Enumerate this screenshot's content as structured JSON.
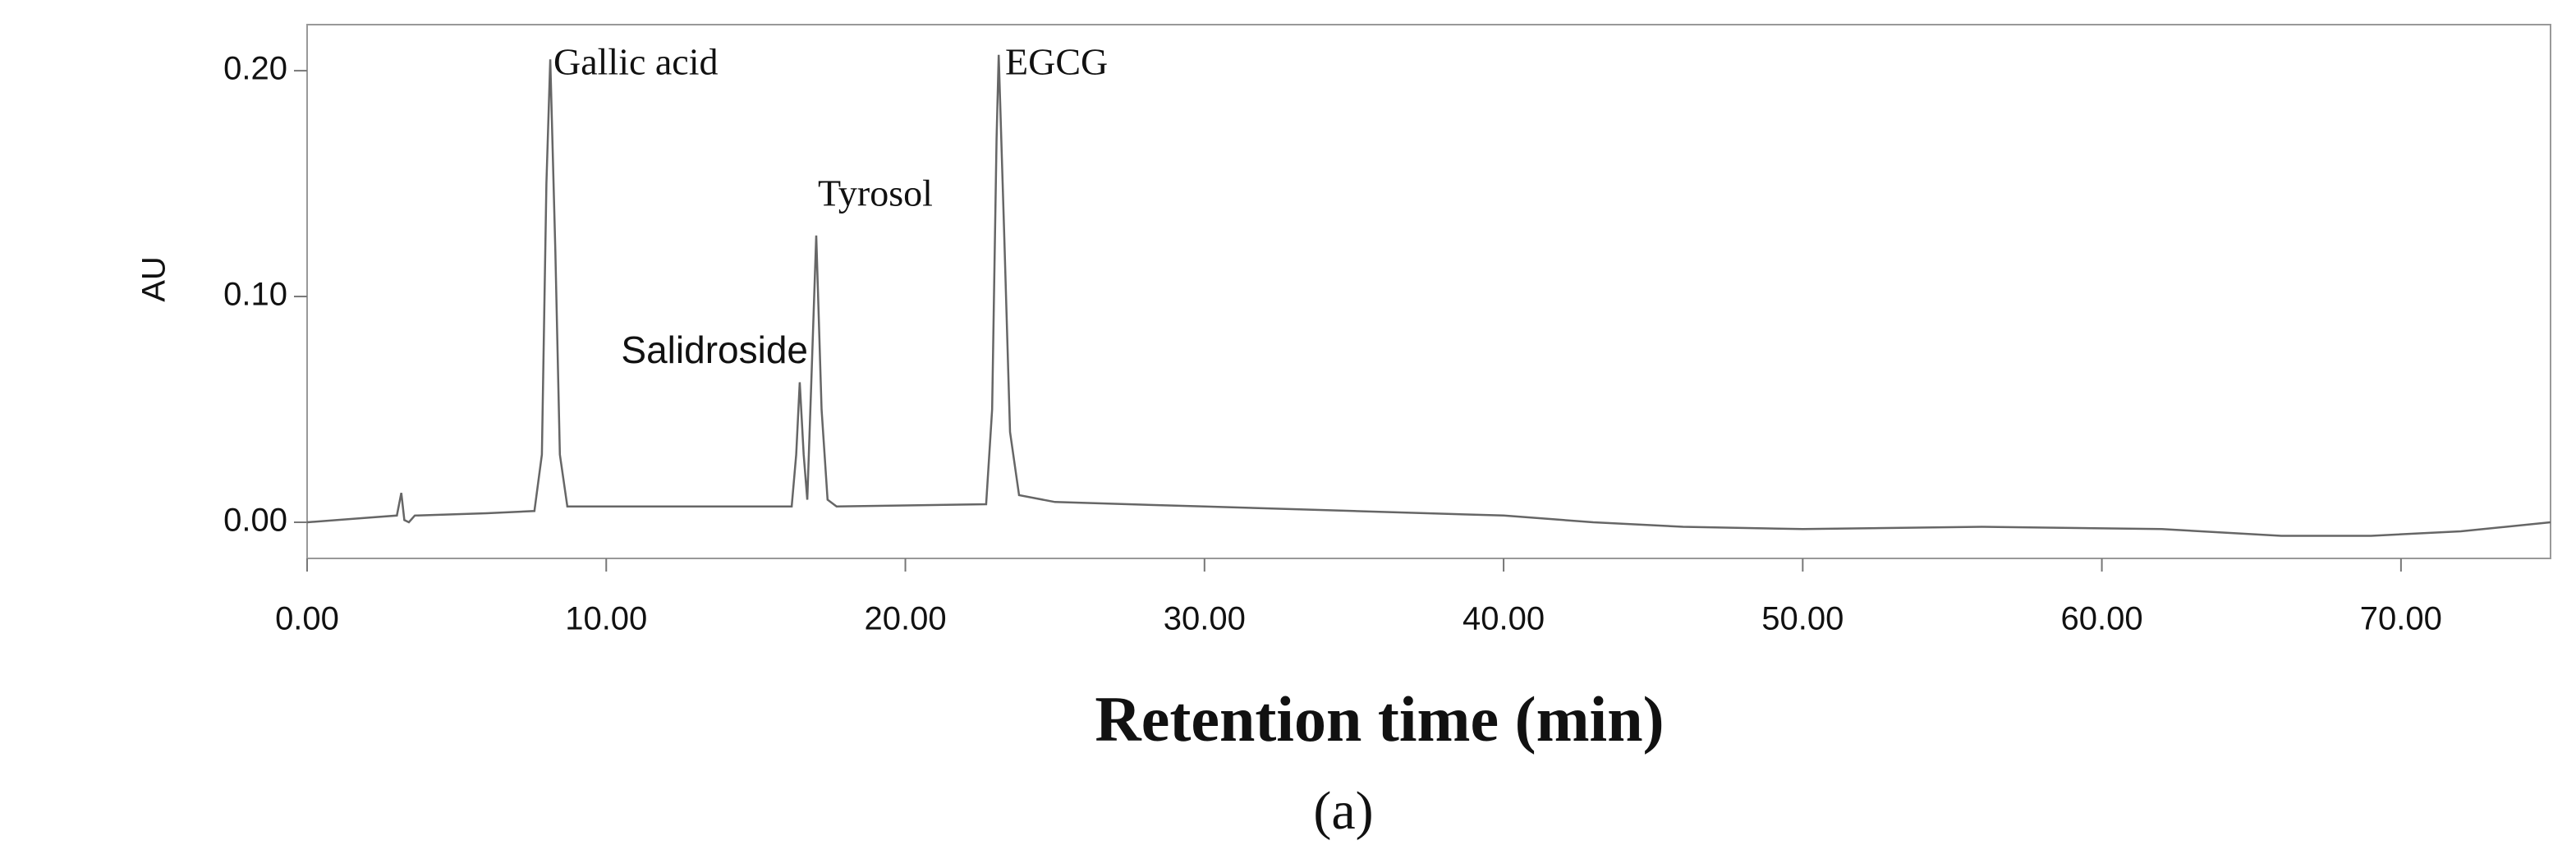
{
  "chart_data": {
    "type": "line",
    "ylabel": "AU",
    "xlabel": "Retention time (min)",
    "caption": "(a)",
    "xlim": [
      0,
      75
    ],
    "ylim": [
      -0.016,
      0.2204
    ],
    "xticks": [
      {
        "value": 0,
        "label": "0.00"
      },
      {
        "value": 10,
        "label": "10.00"
      },
      {
        "value": 20,
        "label": "20.00"
      },
      {
        "value": 30,
        "label": "30.00"
      },
      {
        "value": 40,
        "label": "40.00"
      },
      {
        "value": 50,
        "label": "50.00"
      },
      {
        "value": 60,
        "label": "60.00"
      },
      {
        "value": 70,
        "label": "70.00"
      }
    ],
    "yticks": [
      {
        "value": 0,
        "label": "0.00"
      },
      {
        "value": 0.1,
        "label": "0.10"
      },
      {
        "value": 0.2,
        "label": "0.20"
      }
    ],
    "annotations": [
      "Gallic acid",
      "Salidroside",
      "Tyrosol",
      "EGCG"
    ],
    "series": [
      {
        "color": "#666666",
        "x": [
          0,
          2,
          3.0,
          3.15,
          3.25,
          3.4,
          3.6,
          6,
          7.6,
          7.85,
          8.0,
          8.13,
          8.3,
          8.45,
          8.7,
          12,
          16.2,
          16.35,
          16.47,
          16.6,
          16.72,
          16.85,
          17.02,
          17.2,
          17.4,
          17.7,
          22.7,
          22.9,
          23.05,
          23.12,
          23.3,
          23.5,
          23.8,
          25,
          30,
          35,
          40,
          43,
          46,
          50,
          56,
          62,
          66,
          69,
          72,
          75
        ],
        "values": [
          0.0,
          0.002,
          0.003,
          0.013,
          0.001,
          0.0,
          0.003,
          0.004,
          0.005,
          0.03,
          0.15,
          0.205,
          0.12,
          0.03,
          0.007,
          0.007,
          0.007,
          0.03,
          0.062,
          0.03,
          0.01,
          0.06,
          0.127,
          0.05,
          0.01,
          0.007,
          0.008,
          0.05,
          0.17,
          0.207,
          0.13,
          0.04,
          0.012,
          0.009,
          0.007,
          0.005,
          0.003,
          0.0,
          -0.002,
          -0.003,
          -0.002,
          -0.003,
          -0.006,
          -0.006,
          -0.004,
          0.0
        ]
      }
    ]
  }
}
